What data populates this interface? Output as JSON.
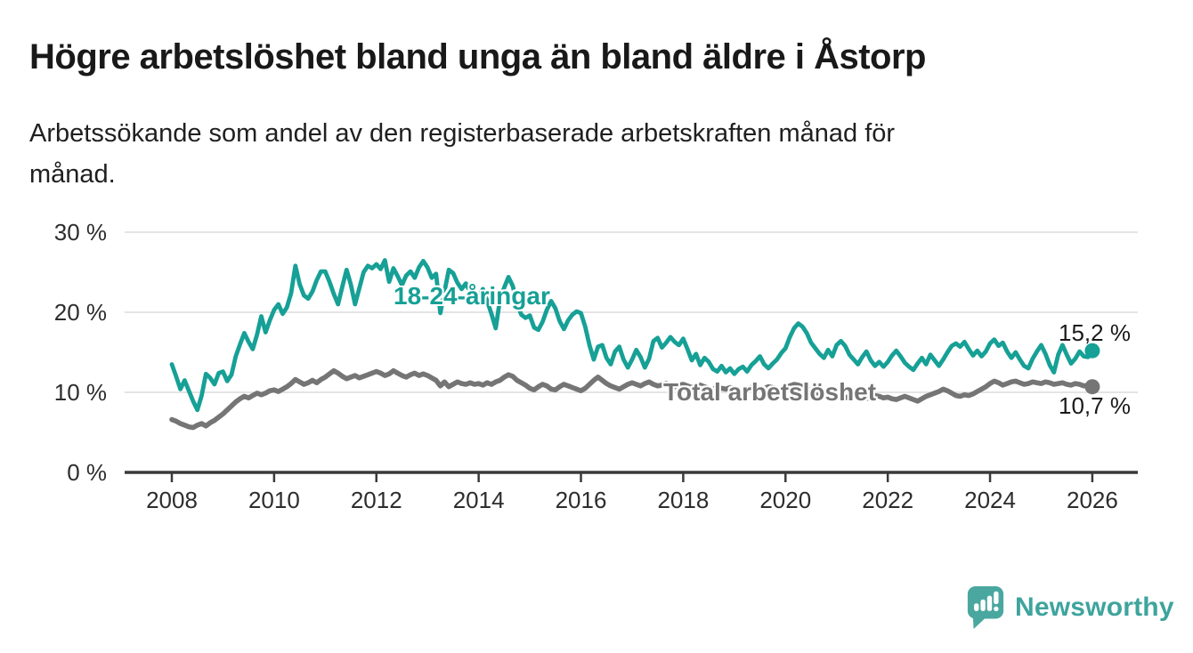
{
  "header": {
    "title": "Högre arbetslöshet bland unga än bland äldre i Åstorp",
    "subtitle": "Arbetssökande som andel av den registerbaserade arbetskraften månad för\nmånad."
  },
  "chart_data": {
    "type": "line",
    "title": "Högre arbetslöshet bland unga än bland äldre i Åstorp",
    "subtitle": "Arbetssökande som andel av den registerbaserade arbetskraften månad för månad.",
    "xlabel": "",
    "ylabel": "",
    "ylim": [
      0,
      30
    ],
    "xlim": [
      2007.1,
      2026.9
    ],
    "grid": "horizontal",
    "legend_position": "inline-labels",
    "x_start_year": 2008,
    "x_step_months": 1,
    "x_axis": {
      "ticks": [
        "2008",
        "2010",
        "2012",
        "2014",
        "2016",
        "2018",
        "2020",
        "2022",
        "2024",
        "2026"
      ]
    },
    "y_axis": {
      "ticks": [
        {
          "label": "30 %",
          "value": 30
        },
        {
          "label": "20 %",
          "value": 20
        },
        {
          "label": "10 %",
          "value": 10
        },
        {
          "label": "0 %",
          "value": 0
        }
      ]
    },
    "series": [
      {
        "name": "18-24-åringar",
        "color": "#16A096",
        "end_label": "15,2 %",
        "end_value": 15.2,
        "values": [
          13.5,
          12.0,
          10.4,
          11.5,
          10.2,
          8.9,
          7.8,
          9.6,
          12.3,
          11.8,
          11.0,
          12.4,
          12.6,
          11.4,
          12.2,
          14.5,
          16.0,
          17.4,
          16.3,
          15.4,
          17.2,
          19.5,
          17.5,
          19.0,
          20.3,
          21.0,
          19.8,
          20.6,
          22.4,
          25.8,
          23.5,
          22.1,
          21.7,
          22.6,
          24.0,
          25.1,
          25.1,
          23.8,
          22.3,
          21.0,
          23.2,
          25.3,
          23.5,
          21.0,
          23.0,
          25.0,
          25.8,
          25.5,
          26.0,
          25.4,
          26.5,
          23.8,
          25.5,
          24.5,
          23.4,
          24.6,
          25.1,
          24.3,
          25.6,
          26.4,
          25.6,
          24.3,
          24.8,
          19.9,
          22.6,
          25.3,
          24.9,
          23.7,
          22.9,
          23.6,
          22.5,
          21.7,
          22.1,
          22.9,
          21.4,
          19.8,
          18.0,
          21.6,
          23.1,
          24.4,
          23.3,
          21.1,
          19.7,
          19.3,
          19.6,
          18.1,
          17.8,
          18.8,
          20.3,
          21.4,
          20.5,
          18.9,
          17.9,
          19.0,
          19.7,
          20.1,
          19.9,
          18.2,
          15.9,
          14.1,
          15.7,
          15.9,
          14.3,
          13.5,
          15.1,
          15.7,
          14.1,
          13.1,
          14.1,
          15.3,
          14.4,
          13.1,
          14.2,
          16.4,
          16.8,
          15.6,
          16.2,
          16.9,
          16.3,
          15.9,
          16.7,
          15.4,
          14.0,
          14.8,
          13.4,
          14.3,
          13.8,
          12.9,
          12.6,
          13.3,
          12.5,
          13.0,
          12.3,
          12.9,
          13.2,
          12.6,
          13.4,
          13.9,
          14.5,
          13.5,
          13.0,
          13.6,
          14.1,
          14.9,
          15.5,
          16.9,
          18.0,
          18.6,
          18.2,
          17.4,
          16.2,
          15.5,
          14.8,
          14.3,
          15.3,
          14.5,
          15.9,
          16.4,
          15.8,
          14.7,
          14.1,
          13.5,
          14.4,
          15.1,
          14.0,
          13.3,
          13.8,
          13.2,
          13.8,
          14.6,
          15.2,
          14.5,
          13.7,
          13.2,
          12.8,
          13.6,
          14.3,
          13.5,
          14.7,
          14.0,
          13.3,
          14.1,
          15.0,
          15.8,
          16.1,
          15.7,
          16.3,
          15.4,
          14.6,
          15.2,
          14.5,
          15.1,
          16.1,
          16.6,
          15.8,
          16.2,
          15.1,
          14.3,
          15.0,
          14.1,
          13.3,
          13.0,
          14.2,
          15.1,
          15.9,
          14.8,
          13.4,
          12.5,
          14.7,
          15.9,
          14.7,
          13.6,
          14.2,
          15.1,
          14.5,
          14.4,
          15.2
        ]
      },
      {
        "name": "Total arbetslöshet",
        "color": "#757575",
        "end_label": "10,7 %",
        "end_value": 10.7,
        "values": [
          6.6,
          6.4,
          6.1,
          5.9,
          5.7,
          5.6,
          5.9,
          6.1,
          5.8,
          6.2,
          6.5,
          6.9,
          7.3,
          7.8,
          8.3,
          8.8,
          9.2,
          9.5,
          9.3,
          9.6,
          9.9,
          9.7,
          9.9,
          10.2,
          10.3,
          10.1,
          10.4,
          10.7,
          11.1,
          11.6,
          11.3,
          11.0,
          11.2,
          11.5,
          11.2,
          11.6,
          11.9,
          12.3,
          12.7,
          12.4,
          12.0,
          11.7,
          11.9,
          12.1,
          11.8,
          12.0,
          12.2,
          12.4,
          12.6,
          12.4,
          12.1,
          12.3,
          12.7,
          12.4,
          12.1,
          11.9,
          12.2,
          12.4,
          12.1,
          12.3,
          12.1,
          11.8,
          11.5,
          10.8,
          11.3,
          10.7,
          11.0,
          11.3,
          11.1,
          11.0,
          11.2,
          11.0,
          11.1,
          10.9,
          11.2,
          11.0,
          11.3,
          11.5,
          11.9,
          12.2,
          12.0,
          11.5,
          11.2,
          10.9,
          10.5,
          10.3,
          10.7,
          11.0,
          10.8,
          10.4,
          10.3,
          10.7,
          11.0,
          10.8,
          10.6,
          10.4,
          10.2,
          10.5,
          11.0,
          11.5,
          11.9,
          11.5,
          11.1,
          10.8,
          10.6,
          10.4,
          10.7,
          11.0,
          11.2,
          11.0,
          10.8,
          11.1,
          11.3,
          11.0,
          10.8,
          10.9,
          11.1,
          10.9,
          10.7,
          10.9,
          11.0,
          10.8,
          10.6,
          10.8,
          10.9,
          10.7,
          10.5,
          10.4,
          10.6,
          10.5,
          10.4,
          10.6,
          10.5,
          10.3,
          10.2,
          10.4,
          10.6,
          10.5,
          10.3,
          10.5,
          10.7,
          10.6,
          10.5,
          10.4,
          10.6,
          10.8,
          11.0,
          10.9,
          10.7,
          10.5,
          10.2,
          9.9,
          9.6,
          9.4,
          9.2,
          9.4,
          9.6,
          9.4,
          9.3,
          9.5,
          9.7,
          9.5,
          9.3,
          9.2,
          9.4,
          9.6,
          9.5,
          9.3,
          9.4,
          9.2,
          9.1,
          9.3,
          9.5,
          9.3,
          9.1,
          8.9,
          9.2,
          9.5,
          9.7,
          9.9,
          10.1,
          10.4,
          10.2,
          9.9,
          9.6,
          9.5,
          9.7,
          9.6,
          9.8,
          10.1,
          10.4,
          10.7,
          11.1,
          11.4,
          11.2,
          10.9,
          11.1,
          11.3,
          11.4,
          11.2,
          11.0,
          11.1,
          11.3,
          11.2,
          11.1,
          11.3,
          11.2,
          11.0,
          11.1,
          11.2,
          11.0,
          10.9,
          11.1,
          11.0,
          10.8,
          10.9,
          10.7
        ]
      }
    ]
  },
  "footer": {
    "brand": "Newsworthy"
  },
  "colors": {
    "accent_teal": "#16A096",
    "series_gray": "#757575",
    "grid": "#DCDCDC",
    "axis": "#3A3A3A",
    "logo_teal": "#4AA7A0",
    "text": "#191919"
  }
}
